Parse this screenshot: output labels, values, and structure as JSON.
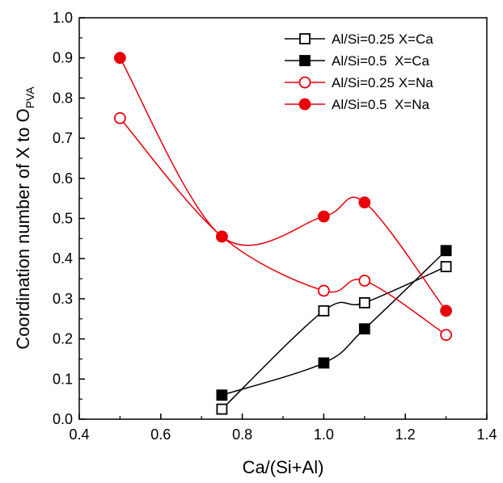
{
  "chart_data": {
    "type": "line",
    "xlabel": "Ca/(Si+Al)",
    "ylabel_main": "Coordination number of X to O",
    "ylabel_sub": "PVA",
    "xlim": [
      0.4,
      1.4
    ],
    "ylim": [
      0.0,
      1.0
    ],
    "x_ticks": [
      "0.4",
      "0.6",
      "0.8",
      "1.0",
      "1.2",
      "1.4"
    ],
    "y_ticks": [
      "0.0",
      "0.1",
      "0.2",
      "0.3",
      "0.4",
      "0.5",
      "0.6",
      "0.7",
      "0.8",
      "0.9",
      "1.0"
    ],
    "grid": false,
    "legend_position": "top-right",
    "colors": {
      "ca": "#000000",
      "na": "#e8000b"
    },
    "series": [
      {
        "name": "Al/Si=0.25 X=Ca",
        "color": "#000000",
        "marker": "square",
        "filled": false,
        "x": [
          0.75,
          1.0,
          1.1,
          1.3
        ],
        "y": [
          0.025,
          0.27,
          0.29,
          0.38
        ]
      },
      {
        "name": "Al/Si=0.5  X=Ca",
        "color": "#000000",
        "marker": "square",
        "filled": true,
        "x": [
          0.75,
          1.0,
          1.1,
          1.3
        ],
        "y": [
          0.06,
          0.14,
          0.225,
          0.42
        ]
      },
      {
        "name": "Al/Si=0.25 X=Na",
        "color": "#e8000b",
        "marker": "circle",
        "filled": false,
        "x": [
          0.5,
          0.75,
          1.0,
          1.1,
          1.3
        ],
        "y": [
          0.75,
          0.455,
          0.32,
          0.345,
          0.21
        ]
      },
      {
        "name": "Al/Si=0.5  X=Na",
        "color": "#e8000b",
        "marker": "circle",
        "filled": true,
        "x": [
          0.5,
          0.75,
          1.0,
          1.1,
          1.3
        ],
        "y": [
          0.9,
          0.455,
          0.505,
          0.54,
          0.27
        ]
      }
    ]
  }
}
